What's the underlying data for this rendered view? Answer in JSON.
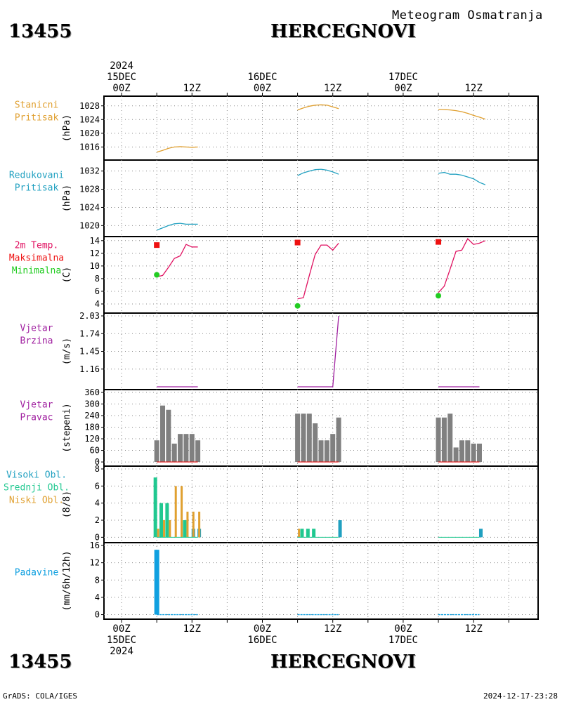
{
  "header": {
    "station_id": "13455",
    "station_name": "HERCEGNOVI",
    "subtitle": "Meteogram Osmatranja"
  },
  "footer": {
    "station_id": "13455",
    "station_name": "HERCEGNOVI",
    "credit": "GrADS: COLA/IGES",
    "timestamp": "2024-12-17-23:28"
  },
  "time_axis": {
    "top_labels": [
      {
        "lines": [
          "2024",
          "15DEC",
          "00Z"
        ],
        "hour": 0
      },
      {
        "lines": [
          "12Z"
        ],
        "hour": 12
      },
      {
        "lines": [
          "16DEC",
          "00Z"
        ],
        "hour": 24
      },
      {
        "lines": [
          "12Z"
        ],
        "hour": 36
      },
      {
        "lines": [
          "17DEC",
          "00Z"
        ],
        "hour": 48
      },
      {
        "lines": [
          "12Z"
        ],
        "hour": 60
      }
    ],
    "bottom_labels": [
      {
        "lines": [
          "00Z",
          "15DEC",
          "2024"
        ],
        "hour": 0
      },
      {
        "lines": [
          "12Z"
        ],
        "hour": 12
      },
      {
        "lines": [
          "00Z",
          "16DEC"
        ],
        "hour": 24
      },
      {
        "lines": [
          "12Z"
        ],
        "hour": 36
      },
      {
        "lines": [
          "00Z",
          "17DEC"
        ],
        "hour": 48
      },
      {
        "lines": [
          "12Z"
        ],
        "hour": 60
      }
    ],
    "range_hours": [
      -3,
      71
    ],
    "gridline_hours": [
      0,
      6,
      12,
      18,
      24,
      30,
      36,
      42,
      48,
      54,
      60,
      66
    ]
  },
  "colors": {
    "pressure_station": "#e0a030",
    "pressure_reduced": "#20a0c0",
    "temp_label": "#e01060",
    "temp_max": "#ee1111",
    "temp_min": "#22cc22",
    "wind": "#a020a0",
    "wind_bar": "#808080",
    "cloud_high": "#20a0c0",
    "cloud_mid": "#20c890",
    "cloud_low": "#e0a030",
    "precip": "#10a0e0"
  },
  "chart_data": [
    {
      "type": "line",
      "panel_label": [
        "Stanicni",
        "Pritisak"
      ],
      "ylabel": "(hPa)",
      "yticks": [
        1016,
        1020,
        1024,
        1028
      ],
      "ylim": [
        1013,
        1030
      ],
      "series": [
        {
          "segments": [
            {
              "x": [
                6,
                7,
                8,
                9,
                10,
                11,
                12,
                13
              ],
              "y": [
                1014.5,
                1015.0,
                1015.6,
                1016.0,
                1016.1,
                1016.0,
                1015.9,
                1016.0
              ]
            },
            {
              "x": [
                30,
                31,
                32,
                33,
                34,
                35,
                36,
                37
              ],
              "y": [
                1026.8,
                1027.4,
                1027.9,
                1028.2,
                1028.3,
                1028.2,
                1027.7,
                1027.2
              ]
            },
            {
              "x": [
                54,
                55,
                56,
                57,
                58,
                59,
                60,
                61,
                62
              ],
              "y": [
                1027.0,
                1026.9,
                1026.8,
                1026.6,
                1026.3,
                1025.8,
                1025.2,
                1024.7,
                1024.1
              ]
            }
          ]
        }
      ]
    },
    {
      "type": "line",
      "panel_label": [
        "Redukovani",
        "Pritisak"
      ],
      "ylabel": "(hPa)",
      "yticks": [
        1020,
        1024,
        1028,
        1032
      ],
      "ylim": [
        1018.2,
        1033.8
      ],
      "series": [
        {
          "segments": [
            {
              "x": [
                6,
                7,
                8,
                9,
                10,
                11,
                12,
                13
              ],
              "y": [
                1019.0,
                1019.5,
                1020.0,
                1020.4,
                1020.5,
                1020.3,
                1020.3,
                1020.3
              ]
            },
            {
              "x": [
                30,
                31,
                32,
                33,
                34,
                35,
                36,
                37
              ],
              "y": [
                1031.0,
                1031.6,
                1032.0,
                1032.3,
                1032.4,
                1032.2,
                1031.8,
                1031.3
              ]
            },
            {
              "x": [
                54,
                55,
                56,
                57,
                58,
                59,
                60,
                61,
                62
              ],
              "y": [
                1031.5,
                1031.7,
                1031.3,
                1031.3,
                1031.1,
                1030.7,
                1030.3,
                1029.5,
                1029.0
              ]
            }
          ]
        }
      ]
    },
    {
      "type": "line",
      "panel_label": [
        "2m Temp.",
        "Maksimalna",
        "Minimalna"
      ],
      "ylabel": "(C)",
      "yticks": [
        4,
        6,
        8,
        10,
        12,
        14
      ],
      "ylim": [
        3.0,
        14.2
      ],
      "series": [
        {
          "name": "2m Temp.",
          "segments": [
            {
              "x": [
                6,
                7,
                8,
                9,
                10,
                11,
                12,
                13
              ],
              "y": [
                8.3,
                8.5,
                9.8,
                11.2,
                11.6,
                13.4,
                13.0,
                13.0
              ]
            },
            {
              "x": [
                30,
                31,
                32,
                33,
                34,
                35,
                36,
                37
              ],
              "y": [
                4.8,
                5.0,
                8.5,
                11.8,
                13.3,
                13.3,
                12.5,
                13.6
              ]
            },
            {
              "x": [
                54,
                55,
                56,
                57,
                58,
                59,
                60,
                61,
                62
              ],
              "y": [
                5.8,
                6.8,
                9.5,
                12.3,
                12.5,
                14.3,
                13.4,
                13.6,
                14.0
              ]
            }
          ]
        }
      ],
      "maxima": {
        "name": "Maksimalna",
        "x": [
          6,
          30,
          54
        ],
        "y": [
          13.3,
          13.7,
          13.8
        ]
      },
      "minima": {
        "name": "Minimalna",
        "x": [
          6,
          30,
          54
        ],
        "y": [
          8.6,
          3.7,
          5.3
        ]
      }
    },
    {
      "type": "line",
      "panel_label": [
        "Vjetar",
        "Brzina"
      ],
      "ylabel": "(m/s)",
      "yticks": [
        1.16,
        1.45,
        1.74,
        2.03
      ],
      "ylim": [
        0.87,
        2.03
      ],
      "series": [
        {
          "segments": [
            {
              "x": [
                6,
                13
              ],
              "y": [
                0.87,
                0.87
              ]
            },
            {
              "x": [
                30,
                36,
                37
              ],
              "y": [
                0.87,
                0.87,
                2.03
              ]
            },
            {
              "x": [
                54,
                61
              ],
              "y": [
                0.87,
                0.87
              ]
            }
          ]
        }
      ]
    },
    {
      "type": "bar",
      "panel_label": [
        "Vjetar",
        "Pravac"
      ],
      "ylabel": "(stepeni)",
      "yticks": [
        0,
        60,
        120,
        180,
        240,
        300,
        360
      ],
      "ylim": [
        -7,
        360
      ],
      "bar_hours": [
        6,
        7,
        8,
        9,
        10,
        11,
        12,
        13,
        30,
        31,
        32,
        33,
        34,
        35,
        36,
        37,
        54,
        55,
        56,
        57,
        58,
        59,
        60,
        61
      ],
      "values": [
        112,
        292,
        270,
        95,
        145,
        145,
        145,
        112,
        250,
        250,
        250,
        200,
        112,
        112,
        145,
        230,
        230,
        230,
        250,
        75,
        112,
        112,
        95,
        95
      ]
    },
    {
      "type": "bar",
      "panel_label": [
        "Visoki Obl.",
        "Srednji Obl.",
        "Niski Obl."
      ],
      "ylabel": "(8/8)",
      "yticks": [
        0,
        2,
        4,
        6,
        8
      ],
      "ylim": [
        -0.3,
        8
      ],
      "series": [
        {
          "name": "Visoki Obl.",
          "x": [
            12,
            13,
            37,
            61
          ],
          "values": [
            1,
            1,
            2,
            1
          ]
        },
        {
          "name": "Srednji Obl.",
          "x": [
            6,
            7,
            8,
            11,
            31,
            32,
            33
          ],
          "values": [
            7,
            4,
            4,
            2,
            1,
            1,
            1
          ]
        },
        {
          "name": "Niski Obl.",
          "x": [
            6,
            7,
            8,
            9,
            10,
            11,
            12,
            13,
            30
          ],
          "values": [
            1,
            2,
            2,
            6,
            6,
            3,
            3,
            3,
            1
          ]
        }
      ]
    },
    {
      "type": "bar",
      "panel_label": [
        "Padavine"
      ],
      "ylabel": "(mm/6h/12h)",
      "yticks": [
        0,
        4,
        8,
        12,
        16
      ],
      "ylim": [
        -0.4,
        16
      ],
      "x": [
        6
      ],
      "values": [
        15
      ],
      "trace_segments": [
        [
          6,
          13
        ],
        [
          30,
          37
        ],
        [
          54,
          61
        ]
      ]
    }
  ]
}
